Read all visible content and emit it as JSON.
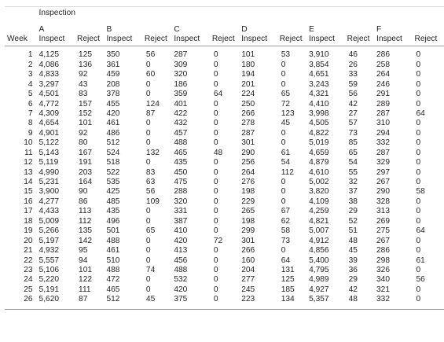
{
  "caption": "Inspection",
  "week_header": "Week",
  "group_letters": [
    "A",
    "B",
    "C",
    "D",
    "E",
    "F"
  ],
  "inspect_label": "Inspect",
  "reject_label": "Reject",
  "rows": [
    [
      "1",
      "4,125",
      "125",
      "350",
      "56",
      "287",
      "0",
      "101",
      "53",
      "3,910",
      "46",
      "286",
      "0"
    ],
    [
      "2",
      "4,086",
      "136",
      "361",
      "0",
      "309",
      "0",
      "180",
      "0",
      "3,854",
      "26",
      "258",
      "0"
    ],
    [
      "3",
      "4,833",
      "92",
      "459",
      "60",
      "320",
      "0",
      "194",
      "0",
      "4,651",
      "33",
      "264",
      "0"
    ],
    [
      "4",
      "3,297",
      "43",
      "208",
      "0",
      "186",
      "0",
      "201",
      "0",
      "3,243",
      "59",
      "246",
      "0"
    ],
    [
      "5",
      "4,501",
      "83",
      "378",
      "0",
      "359",
      "64",
      "224",
      "65",
      "4,321",
      "56",
      "291",
      "0"
    ],
    [
      "6",
      "4,772",
      "157",
      "455",
      "124",
      "401",
      "0",
      "250",
      "72",
      "4,410",
      "42",
      "289",
      "0"
    ],
    [
      "7",
      "4,309",
      "152",
      "420",
      "87",
      "422",
      "0",
      "266",
      "123",
      "3,998",
      "27",
      "287",
      "64"
    ],
    [
      "8",
      "4,654",
      "101",
      "461",
      "0",
      "432",
      "0",
      "278",
      "45",
      "4,505",
      "57",
      "310",
      "0"
    ],
    [
      "9",
      "4,901",
      "92",
      "486",
      "0",
      "457",
      "0",
      "287",
      "0",
      "4,822",
      "73",
      "294",
      "0"
    ],
    [
      "10",
      "5,122",
      "80",
      "512",
      "0",
      "488",
      "0",
      "301",
      "0",
      "5,019",
      "85",
      "332",
      "0"
    ],
    [
      "11",
      "5,143",
      "167",
      "524",
      "132",
      "465",
      "48",
      "290",
      "61",
      "4,659",
      "65",
      "287",
      "0"
    ],
    [
      "12",
      "5,119",
      "191",
      "518",
      "0",
      "435",
      "0",
      "256",
      "54",
      "4,879",
      "54",
      "329",
      "0"
    ],
    [
      "13",
      "4,990",
      "203",
      "522",
      "83",
      "450",
      "0",
      "264",
      "112",
      "4,610",
      "55",
      "297",
      "0"
    ],
    [
      "14",
      "5,231",
      "164",
      "535",
      "63",
      "475",
      "0",
      "276",
      "0",
      "5,002",
      "32",
      "267",
      "0"
    ],
    [
      "15",
      "3,900",
      "90",
      "425",
      "56",
      "288",
      "0",
      "198",
      "0",
      "3,820",
      "37",
      "290",
      "58"
    ],
    [
      "16",
      "4,277",
      "86",
      "485",
      "109",
      "320",
      "0",
      "229",
      "0",
      "4,109",
      "38",
      "328",
      "0"
    ],
    [
      "17",
      "4,433",
      "113",
      "435",
      "0",
      "331",
      "0",
      "265",
      "67",
      "4,259",
      "29",
      "313",
      "0"
    ],
    [
      "18",
      "5,009",
      "112",
      "496",
      "0",
      "387",
      "0",
      "198",
      "62",
      "4,821",
      "52",
      "269",
      "0"
    ],
    [
      "19",
      "5,266",
      "135",
      "501",
      "65",
      "410",
      "0",
      "299",
      "58",
      "5,007",
      "51",
      "275",
      "64"
    ],
    [
      "20",
      "5,197",
      "142",
      "488",
      "0",
      "420",
      "72",
      "301",
      "73",
      "4,912",
      "48",
      "267",
      "0"
    ],
    [
      "21",
      "4,932",
      "95",
      "461",
      "0",
      "413",
      "0",
      "266",
      "0",
      "4,856",
      "45",
      "286",
      "0"
    ],
    [
      "22",
      "5,557",
      "94",
      "510",
      "0",
      "456",
      "0",
      "160",
      "64",
      "5,400",
      "39",
      "298",
      "61"
    ],
    [
      "23",
      "5,106",
      "101",
      "488",
      "74",
      "488",
      "0",
      "204",
      "131",
      "4,795",
      "36",
      "326",
      "0"
    ],
    [
      "24",
      "5,220",
      "122",
      "472",
      "0",
      "532",
      "0",
      "277",
      "125",
      "4,989",
      "29",
      "340",
      "56"
    ],
    [
      "25",
      "5,191",
      "111",
      "465",
      "0",
      "420",
      "0",
      "245",
      "185",
      "4,927",
      "42",
      "321",
      "0"
    ],
    [
      "26",
      "5,620",
      "87",
      "512",
      "45",
      "375",
      "0",
      "223",
      "134",
      "5,357",
      "48",
      "332",
      "0"
    ]
  ]
}
